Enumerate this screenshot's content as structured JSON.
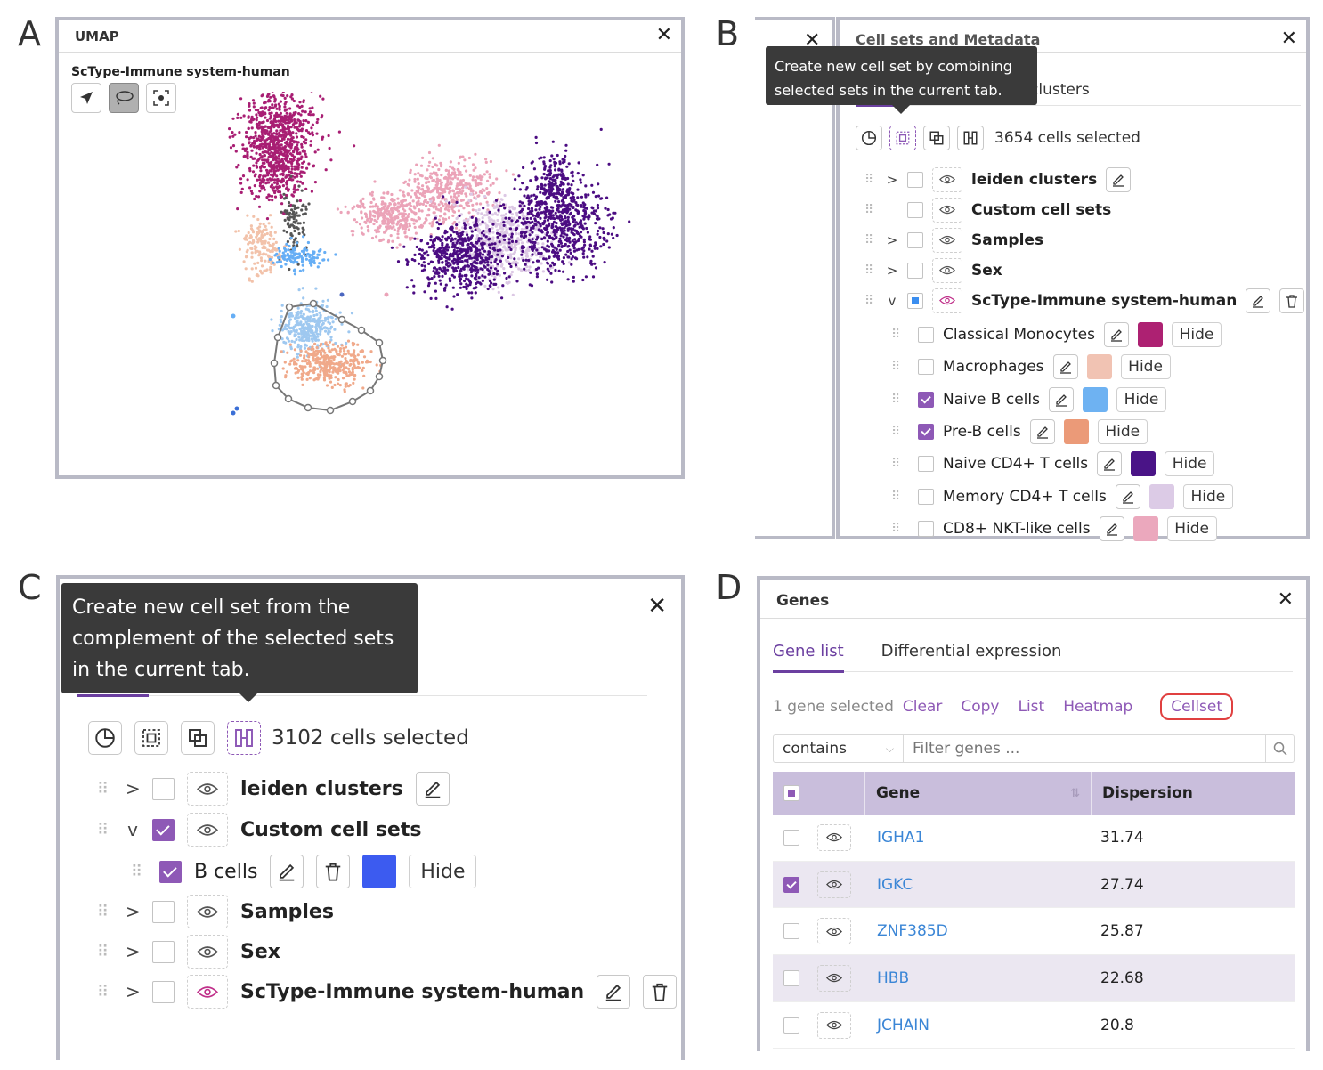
{
  "panel_labels": {
    "a": "A",
    "b": "B",
    "c": "C",
    "d": "D"
  },
  "panel_a": {
    "title": "UMAP",
    "subtitle": "ScType-Immune system-human",
    "tools": [
      {
        "name": "navigate-tool",
        "icon": "pointer-arrow-icon",
        "active": false
      },
      {
        "name": "lasso-tool",
        "icon": "lasso-icon",
        "active": true
      },
      {
        "name": "recenter-tool",
        "icon": "recenter-icon",
        "active": false
      }
    ],
    "cluster_colors": {
      "classical_monocytes": "#a81e73",
      "macrophages": "#f2c2aa",
      "naive_b": "#66aef5",
      "naive_b_light": "#9ec8f0",
      "pre_b": "#f0a98a",
      "naive_cd4": "#4b0c82",
      "memory_cd4": "#dcc8e4",
      "cd8_nkt": "#eba3b8",
      "dark": "#555555"
    }
  },
  "panel_b": {
    "title": "Cell sets and Metadata",
    "tooltip": [
      "Create new cell set by combining",
      "selected sets in the current tab."
    ],
    "tab_visible": "clusters",
    "selected_count": "3654 cells selected",
    "top_sets": [
      {
        "label": "leiden clusters",
        "expand": ">",
        "checkbox": "empty",
        "edit": true,
        "eye_color": "#555"
      },
      {
        "label": "Custom cell sets",
        "expand": "",
        "checkbox": "empty",
        "edit": false,
        "eye_color": "#555"
      },
      {
        "label": "Samples",
        "expand": ">",
        "checkbox": "empty",
        "edit": false,
        "eye_color": "#555"
      },
      {
        "label": "Sex",
        "expand": ">",
        "checkbox": "empty",
        "edit": false,
        "eye_color": "#555"
      },
      {
        "label": "ScType-Immune system-human",
        "expand": "v",
        "checkbox": "partial",
        "edit": true,
        "trash": true,
        "eye_color": "#c0308a"
      }
    ],
    "children": [
      {
        "label": "Classical Monocytes",
        "checked": false,
        "color": "#ad2172",
        "hide": "Hide"
      },
      {
        "label": "Macrophages",
        "checked": false,
        "color": "#f1c3b3",
        "hide": "Hide"
      },
      {
        "label": "Naive B cells",
        "checked": true,
        "color": "#6eb2f2",
        "hide": "Hide"
      },
      {
        "label": "Pre-B cells",
        "checked": true,
        "color": "#eb9a78",
        "hide": "Hide"
      },
      {
        "label": "Naive CD4+ T cells",
        "checked": false,
        "color": "#4a1487",
        "hide": "Hide"
      },
      {
        "label": "Memory CD4+ T cells",
        "checked": false,
        "color": "#dccbe6",
        "hide": "Hide"
      },
      {
        "label": "CD8+ NKT-like cells",
        "checked": false,
        "color": "#eba8bd",
        "hide": "Hide"
      }
    ]
  },
  "panel_c": {
    "tooltip": [
      "Create new cell set from the",
      "complement of the selected sets",
      "in the current tab."
    ],
    "selected_count": "3102 cells selected",
    "sets": [
      {
        "label": "leiden clusters",
        "expand": ">",
        "checkbox": "empty",
        "edit": true,
        "trash": false,
        "eye_color": "#555"
      },
      {
        "label": "Custom cell sets",
        "expand": "v",
        "checkbox": "checked",
        "edit": false,
        "trash": false,
        "eye_color": "#555"
      },
      {
        "label": "Samples",
        "expand": ">",
        "checkbox": "empty",
        "edit": false,
        "trash": false,
        "eye_color": "#555"
      },
      {
        "label": "Sex",
        "expand": ">",
        "checkbox": "empty",
        "edit": false,
        "trash": false,
        "eye_color": "#555"
      },
      {
        "label": "ScType-Immune system-human",
        "expand": ">",
        "checkbox": "empty",
        "edit": true,
        "trash": true,
        "eye_color": "#c0308a"
      }
    ],
    "child": {
      "label": "B cells",
      "color": "#3c5bf0",
      "hide": "Hide"
    }
  },
  "panel_d": {
    "title": "Genes",
    "tabs": [
      "Gene list",
      "Differential expression"
    ],
    "active_tab": 0,
    "selection_text": "1 gene selected",
    "actions": [
      "Clear",
      "Copy",
      "List",
      "Heatmap",
      "Cellset"
    ],
    "filter_mode": "contains",
    "filter_placeholder": "Filter genes ...",
    "columns": [
      "Gene",
      "Dispersion"
    ],
    "rows": [
      {
        "gene": "IGHA1",
        "dispersion": "31.74",
        "checked": false
      },
      {
        "gene": "IGKC",
        "dispersion": "27.74",
        "checked": true
      },
      {
        "gene": "ZNF385D",
        "dispersion": "25.87",
        "checked": false
      },
      {
        "gene": "HBB",
        "dispersion": "22.68",
        "checked": false
      },
      {
        "gene": "JCHAIN",
        "dispersion": "20.8",
        "checked": false
      }
    ],
    "highlight_color": "#e04040"
  }
}
